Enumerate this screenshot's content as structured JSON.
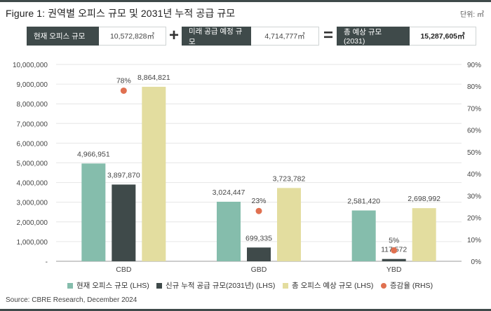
{
  "title": "Figure 1: 권역별 오피스 규모 및 2031년 누적 공급 규모",
  "unit": "단위: ㎡",
  "equation": {
    "current_label": "현재 오피스 규모",
    "current_value": "10,572,828㎡",
    "plus": "+",
    "future_label": "미래 공급 예정 규모",
    "future_value": "4,714,777㎡",
    "equals": "=",
    "total_label": "총 예상 규모 (2031)",
    "total_value": "15,287,605㎡"
  },
  "colors": {
    "current": "#85bdac",
    "new_supply": "#3f4a4a",
    "total": "#e3dd9f",
    "rate": "#e07050",
    "axis_text": "#444444",
    "grid": "#e6e6e6",
    "dark": "#3f4a4a"
  },
  "chart_data": {
    "type": "bar",
    "categories": [
      "CBD",
      "GBD",
      "YBD"
    ],
    "series": [
      {
        "name": "현재 오피스 규모 (LHS)",
        "values": [
          4966951,
          3024447,
          2581420
        ],
        "labels": [
          "4,966,951",
          "3,024,447",
          "2,581,420"
        ],
        "axis": "left"
      },
      {
        "name": "신규 누적 공급 규모(2031년) (LHS)",
        "values": [
          3897870,
          699335,
          117572
        ],
        "labels": [
          "3,897,870",
          "699,335",
          "117,572"
        ],
        "axis": "left"
      },
      {
        "name": "총 오피스 예상 규모 (LHS)",
        "values": [
          8864821,
          3723782,
          2698992
        ],
        "labels": [
          "8,864,821",
          "3,723,782",
          "2,698,992"
        ],
        "axis": "left"
      },
      {
        "name": "증감율 (RHS)",
        "values": [
          78,
          23,
          5
        ],
        "labels": [
          "78%",
          "23%",
          "5%"
        ],
        "axis": "right",
        "type": "scatter"
      }
    ],
    "y_left": {
      "min": 0,
      "max": 10000000,
      "ticks": [
        "-",
        "1,000,000",
        "2,000,000",
        "3,000,000",
        "4,000,000",
        "5,000,000",
        "6,000,000",
        "7,000,000",
        "8,000,000",
        "9,000,000",
        "10,000,000"
      ]
    },
    "y_right": {
      "min": 0,
      "max": 90,
      "ticks": [
        "0%",
        "10%",
        "20%",
        "30%",
        "40%",
        "50%",
        "60%",
        "70%",
        "80%",
        "90%"
      ]
    },
    "grid": true,
    "legend_position": "bottom"
  },
  "source": "Source: CBRE Research, December 2024"
}
